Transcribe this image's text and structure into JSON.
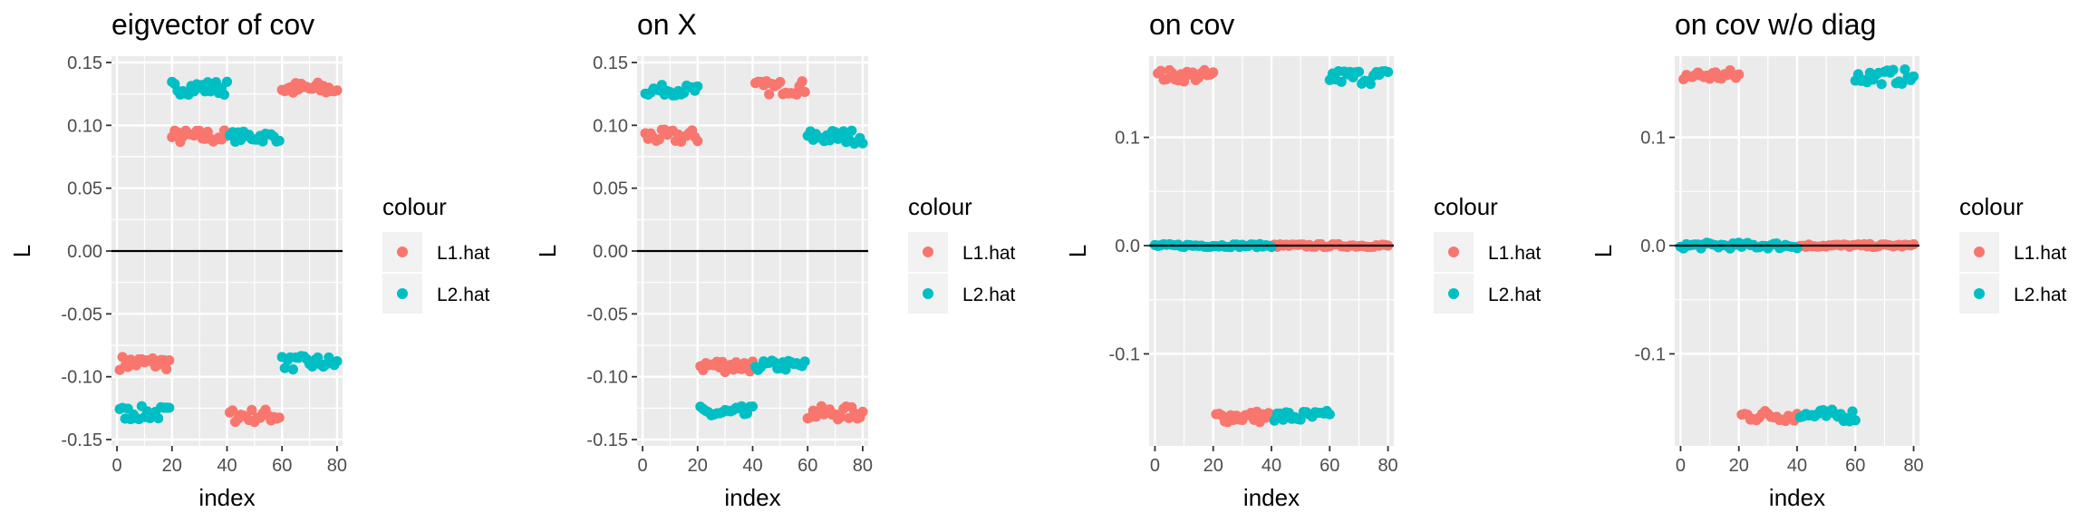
{
  "figure": {
    "legend_title": "colour",
    "colors": {
      "L1.hat": "#F8766D",
      "L2.hat": "#00BFC4"
    },
    "panel_background": "#EBEBEB",
    "grid_color": "#FFFFFF"
  },
  "chart_data": [
    {
      "type": "scatter",
      "title": "eigvector of cov",
      "xlabel": "index",
      "ylabel": "L",
      "xlim": [
        -2,
        82
      ],
      "ylim": [
        -0.155,
        0.155
      ],
      "xticks": [
        0,
        20,
        40,
        60,
        80
      ],
      "xtick_labels": [
        "0",
        "20",
        "40",
        "60",
        "80"
      ],
      "yticks": [
        -0.15,
        -0.1,
        -0.05,
        0.0,
        0.05,
        0.1,
        0.15
      ],
      "ytick_labels": [
        "-0.15",
        "-0.10",
        "-0.05",
        "0.00",
        "0.05",
        "0.10",
        "0.15"
      ],
      "hline": 0,
      "grid": true,
      "legend": {
        "title": "colour",
        "position": "right",
        "entries": [
          "L1.hat",
          "L2.hat"
        ]
      },
      "series": [
        {
          "name": "L1.hat",
          "color": "#F8766D",
          "segments": [
            {
              "x_from": 1,
              "x_to": 19,
              "center": -0.089,
              "spread": 0.004
            },
            {
              "x_from": 20,
              "x_to": 40,
              "center": 0.091,
              "spread": 0.004
            },
            {
              "x_from": 41,
              "x_to": 59,
              "center": -0.131,
              "spread": 0.004
            },
            {
              "x_from": 60,
              "x_to": 80,
              "center": 0.129,
              "spread": 0.004
            }
          ]
        },
        {
          "name": "L2.hat",
          "color": "#00BFC4",
          "segments": [
            {
              "x_from": 1,
              "x_to": 19,
              "center": -0.129,
              "spread": 0.004
            },
            {
              "x_from": 20,
              "x_to": 40,
              "center": 0.13,
              "spread": 0.004
            },
            {
              "x_from": 41,
              "x_to": 59,
              "center": 0.091,
              "spread": 0.003
            },
            {
              "x_from": 60,
              "x_to": 80,
              "center": -0.089,
              "spread": 0.004
            }
          ]
        }
      ]
    },
    {
      "type": "scatter",
      "title": "on X",
      "xlabel": "index",
      "ylabel": "L",
      "xlim": [
        -2,
        82
      ],
      "ylim": [
        -0.155,
        0.155
      ],
      "xticks": [
        0,
        20,
        40,
        60,
        80
      ],
      "xtick_labels": [
        "0",
        "20",
        "40",
        "60",
        "80"
      ],
      "yticks": [
        -0.15,
        -0.1,
        -0.05,
        0.0,
        0.05,
        0.1,
        0.15
      ],
      "ytick_labels": [
        "-0.15",
        "-0.10",
        "-0.05",
        "0.00",
        "0.05",
        "0.10",
        "0.15"
      ],
      "hline": 0,
      "grid": true,
      "legend": {
        "title": "colour",
        "position": "right",
        "entries": [
          "L1.hat",
          "L2.hat"
        ]
      },
      "series": [
        {
          "name": "L1.hat",
          "color": "#F8766D",
          "segments": [
            {
              "x_from": 1,
              "x_to": 20,
              "center": 0.091,
              "spread": 0.004
            },
            {
              "x_from": 21,
              "x_to": 40,
              "center": -0.091,
              "spread": 0.004
            },
            {
              "x_from": 41,
              "x_to": 59,
              "center": 0.13,
              "spread": 0.004
            },
            {
              "x_from": 60,
              "x_to": 80,
              "center": -0.129,
              "spread": 0.004
            }
          ]
        },
        {
          "name": "L2.hat",
          "color": "#00BFC4",
          "segments": [
            {
              "x_from": 1,
              "x_to": 20,
              "center": 0.128,
              "spread": 0.003
            },
            {
              "x_from": 21,
              "x_to": 40,
              "center": -0.129,
              "spread": 0.004
            },
            {
              "x_from": 41,
              "x_to": 59,
              "center": -0.091,
              "spread": 0.003
            },
            {
              "x_from": 60,
              "x_to": 80,
              "center": 0.091,
              "spread": 0.004
            }
          ]
        }
      ]
    },
    {
      "type": "scatter",
      "title": "on cov",
      "xlabel": "index",
      "ylabel": "L",
      "xlim": [
        -2,
        82
      ],
      "ylim": [
        -0.185,
        0.175
      ],
      "xticks": [
        0,
        20,
        40,
        60,
        80
      ],
      "xtick_labels": [
        "0",
        "20",
        "40",
        "60",
        "80"
      ],
      "yticks": [
        -0.1,
        0.0,
        0.1
      ],
      "ytick_labels": [
        "-0.1",
        "0.0",
        "0.1"
      ],
      "hline": 0,
      "grid": true,
      "legend": {
        "title": "colour",
        "position": "right",
        "entries": [
          "L1.hat",
          "L2.hat"
        ]
      },
      "series": [
        {
          "name": "L1.hat",
          "color": "#F8766D",
          "segments": [
            {
              "x_from": 1,
              "x_to": 20,
              "center": 0.157,
              "spread": 0.004
            },
            {
              "x_from": 21,
              "x_to": 40,
              "center": -0.158,
              "spread": 0.004
            },
            {
              "x_from": 41,
              "x_to": 80,
              "center": 0.0,
              "spread": 0.001
            }
          ]
        },
        {
          "name": "L2.hat",
          "color": "#00BFC4",
          "segments": [
            {
              "x_from": 0,
              "x_to": 40,
              "center": 0.0,
              "spread": 0.001
            },
            {
              "x_from": 41,
              "x_to": 60,
              "center": -0.158,
              "spread": 0.004
            },
            {
              "x_from": 60,
              "x_to": 80,
              "center": 0.156,
              "spread": 0.005
            }
          ]
        }
      ]
    },
    {
      "type": "scatter",
      "title": "on cov w/o diag",
      "xlabel": "index",
      "ylabel": "L",
      "xlim": [
        -2,
        82
      ],
      "ylim": [
        -0.185,
        0.175
      ],
      "xticks": [
        0,
        20,
        40,
        60,
        80
      ],
      "xtick_labels": [
        "0",
        "20",
        "40",
        "60",
        "80"
      ],
      "yticks": [
        -0.1,
        0.0,
        0.1
      ],
      "ytick_labels": [
        "-0.1",
        "0.0",
        "0.1"
      ],
      "hline": 0,
      "grid": true,
      "legend": {
        "title": "colour",
        "position": "right",
        "entries": [
          "L1.hat",
          "L2.hat"
        ]
      },
      "series": [
        {
          "name": "L1.hat",
          "color": "#F8766D",
          "segments": [
            {
              "x_from": 1,
              "x_to": 20,
              "center": 0.157,
              "spread": 0.004
            },
            {
              "x_from": 21,
              "x_to": 40,
              "center": -0.157,
              "spread": 0.004
            },
            {
              "x_from": 41,
              "x_to": 80,
              "center": 0.0,
              "spread": 0.001
            }
          ]
        },
        {
          "name": "L2.hat",
          "color": "#00BFC4",
          "segments": [
            {
              "x_from": 0,
              "x_to": 40,
              "center": 0.0,
              "spread": 0.002
            },
            {
              "x_from": 41,
              "x_to": 60,
              "center": -0.157,
              "spread": 0.004
            },
            {
              "x_from": 60,
              "x_to": 80,
              "center": 0.156,
              "spread": 0.005
            }
          ]
        }
      ]
    }
  ]
}
